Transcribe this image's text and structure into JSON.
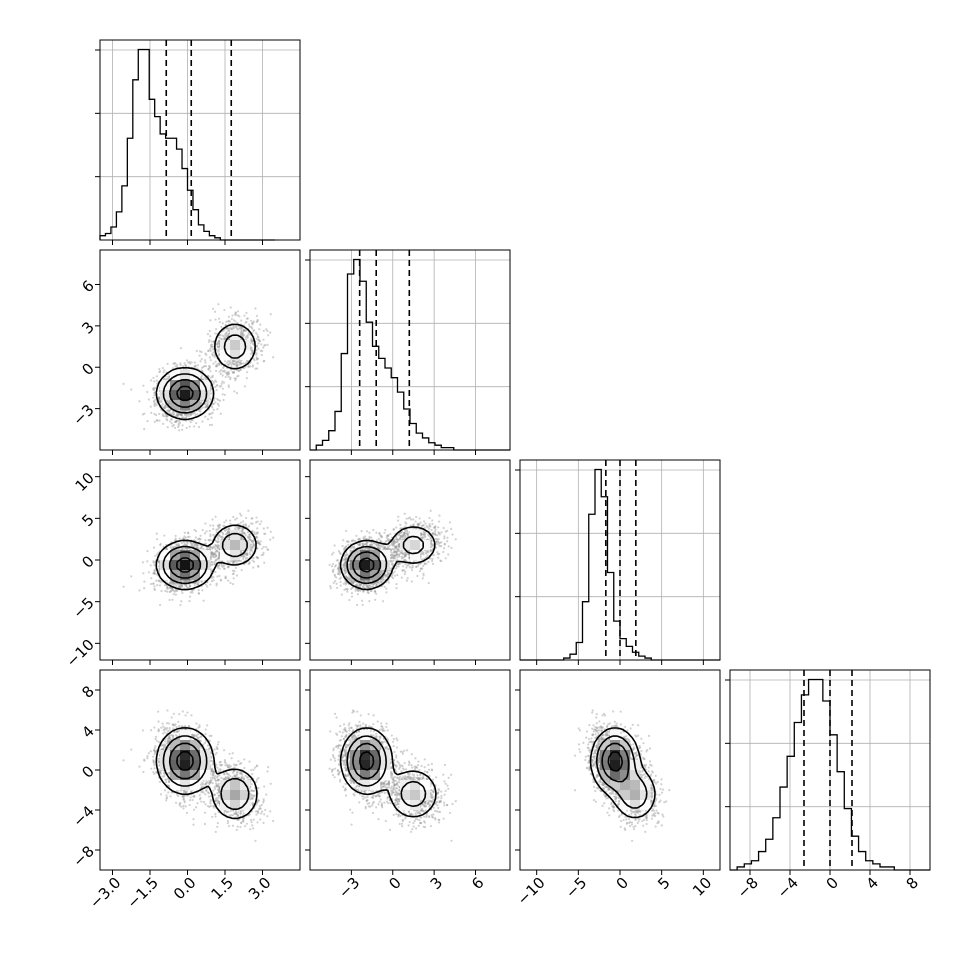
{
  "chart_data": {
    "type": "corner",
    "grid": true,
    "variables": [
      {
        "range": [
          -3.5,
          4.5
        ],
        "ticks": [
          -3.0,
          -1.5,
          0.0,
          1.5,
          3.0
        ],
        "tick_labels": [
          "−3.0",
          "−1.5",
          "0.0",
          "1.5",
          "3.0"
        ],
        "quantiles": [
          -0.85,
          0.15,
          1.75
        ],
        "hist_edges": [
          -3.5,
          3.5,
          32
        ],
        "hist_counts": [
          2,
          3,
          6,
          13,
          25,
          47,
          74,
          88,
          88,
          65,
          57,
          49,
          47,
          47,
          42,
          33,
          23,
          14,
          7,
          4,
          2,
          1,
          0,
          0,
          0,
          0,
          0,
          0,
          0,
          0,
          0,
          0
        ]
      },
      {
        "range": [
          -6,
          8.5
        ],
        "ticks": [
          -3,
          0,
          3,
          6
        ],
        "tick_labels": [
          "−3",
          "0",
          "3",
          "6"
        ],
        "quantiles": [
          -2.4,
          -1.2,
          1.2
        ],
        "hist_edges": [
          -6,
          8.5,
          32
        ],
        "hist_counts": [
          0,
          2,
          4,
          8,
          16,
          40,
          73,
          79,
          70,
          53,
          43,
          38,
          34,
          30,
          24,
          17,
          11,
          7,
          5,
          3,
          2,
          1,
          1,
          0,
          0,
          0,
          0,
          0,
          0,
          0,
          0,
          0
        ]
      },
      {
        "range": [
          -12,
          12
        ],
        "ticks": [
          -10,
          -5,
          0,
          5,
          10
        ],
        "tick_labels": [
          "−10",
          "−5",
          "0",
          "5",
          "10"
        ],
        "quantiles": [
          -1.7,
          0,
          1.9
        ],
        "hist_edges": [
          -12,
          12,
          32
        ],
        "hist_counts": [
          0,
          0,
          0,
          0,
          0,
          0,
          0,
          1,
          3,
          9,
          30,
          75,
          98,
          84,
          45,
          20,
          11,
          7,
          4,
          2,
          1,
          0,
          0,
          0,
          0,
          0,
          0,
          0,
          0,
          0,
          0,
          0
        ]
      },
      {
        "range": [
          -10,
          10
        ],
        "ticks": [
          -8,
          -4,
          0,
          4,
          8
        ],
        "tick_labels": [
          "−8",
          "−4",
          "0",
          "4",
          "8"
        ],
        "quantiles": [
          -2.6,
          0,
          2.2
        ],
        "hist_edges": [
          -10,
          10,
          28
        ],
        "hist_counts": [
          0,
          1,
          2,
          3,
          6,
          10,
          17,
          27,
          37,
          48,
          57,
          62,
          62,
          55,
          44,
          32,
          20,
          11,
          6,
          3,
          2,
          1,
          1,
          0,
          0,
          0,
          0,
          0
        ]
      }
    ],
    "mixture": [
      {
        "w": 0.7,
        "mean": [
          -0.1,
          -1.9,
          -0.6,
          0.9
        ],
        "sd": [
          0.55,
          0.9,
          1.4,
          1.6
        ]
      },
      {
        "w": 0.3,
        "mean": [
          1.9,
          1.5,
          1.8,
          -2.4
        ],
        "sd": [
          0.5,
          1.0,
          1.4,
          1.4
        ]
      }
    ]
  }
}
